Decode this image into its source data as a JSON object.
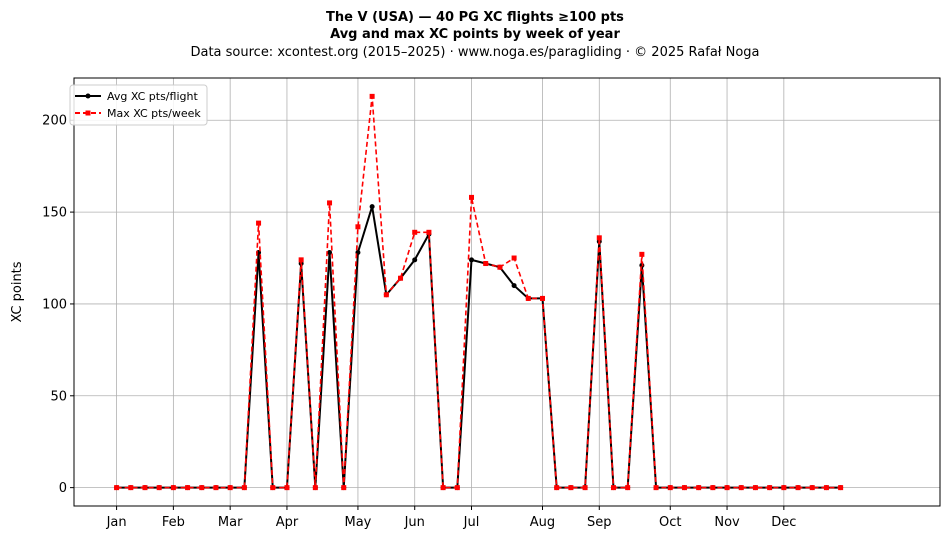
{
  "chart_data": {
    "type": "line",
    "title": "The V (USA)  —  40 PG XC flights ≥100 pts",
    "subtitle": "Avg and max XC points by week of year",
    "source": "Data source: xcontest.org (2015–2025)  ·  www.noga.es/paragliding  ·  © 2025 Rafał Noga",
    "xlabel": "",
    "ylabel": "XC points",
    "xlim": [
      -3,
      58
    ],
    "ylim": [
      -10,
      223
    ],
    "yticks": [
      0,
      50,
      100,
      150,
      200
    ],
    "xticks": [
      {
        "label": "Jan",
        "week": 0
      },
      {
        "label": "Feb",
        "week": 4
      },
      {
        "label": "Mar",
        "week": 8
      },
      {
        "label": "Apr",
        "week": 12
      },
      {
        "label": "May",
        "week": 17
      },
      {
        "label": "Jun",
        "week": 21
      },
      {
        "label": "Jul",
        "week": 25
      },
      {
        "label": "Aug",
        "week": 30
      },
      {
        "label": "Sep",
        "week": 34
      },
      {
        "label": "Oct",
        "week": 39
      },
      {
        "label": "Nov",
        "week": 43
      },
      {
        "label": "Dec",
        "week": 47
      }
    ],
    "grid": true,
    "legend_position": "top-left",
    "series": [
      {
        "name": "Avg XC pts/flight",
        "color": "#000000",
        "style": "solid",
        "marker": "circle",
        "values": [
          0,
          0,
          0,
          0,
          0,
          0,
          0,
          0,
          0,
          0,
          128,
          0,
          0,
          122,
          0,
          128,
          0,
          128,
          153,
          105,
          114,
          124,
          138,
          0,
          0,
          124,
          122,
          120,
          110,
          103,
          103,
          0,
          0,
          0,
          134,
          0,
          0,
          121,
          0,
          0,
          0,
          0,
          0,
          0,
          0,
          0,
          0,
          0,
          0,
          0,
          0,
          0
        ]
      },
      {
        "name": "Max XC pts/week",
        "color": "#ff0000",
        "style": "dashed",
        "marker": "square",
        "values": [
          0,
          0,
          0,
          0,
          0,
          0,
          0,
          0,
          0,
          0,
          144,
          0,
          0,
          124,
          0,
          155,
          0,
          142,
          213,
          105,
          114,
          139,
          139,
          0,
          0,
          158,
          122,
          120,
          125,
          103,
          103,
          0,
          0,
          0,
          136,
          0,
          0,
          127,
          0,
          0,
          0,
          0,
          0,
          0,
          0,
          0,
          0,
          0,
          0,
          0,
          0,
          0
        ]
      }
    ]
  }
}
